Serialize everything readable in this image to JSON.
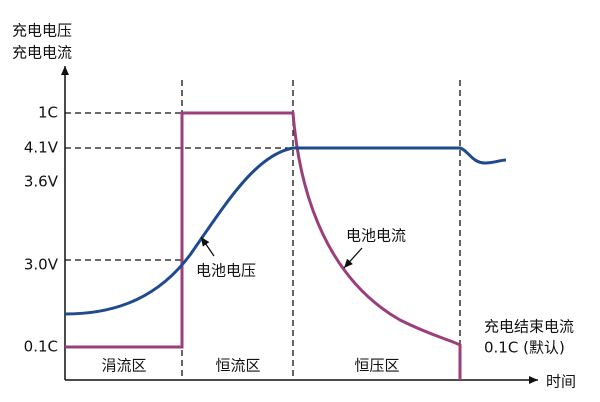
{
  "axis": {
    "y_title": [
      "充电电压",
      "充电电流"
    ],
    "x_title": "时间",
    "y_labels": [
      "1C",
      "4.1V",
      "3.6V",
      "3.0V",
      "0.1C"
    ]
  },
  "regions": [
    "涓流区",
    "恒流区",
    "恒压区"
  ],
  "curves": {
    "voltage": "电池电压",
    "current": "电池电流"
  },
  "end_note": [
    "充电结束电流",
    "0.1C (默认)"
  ]
}
